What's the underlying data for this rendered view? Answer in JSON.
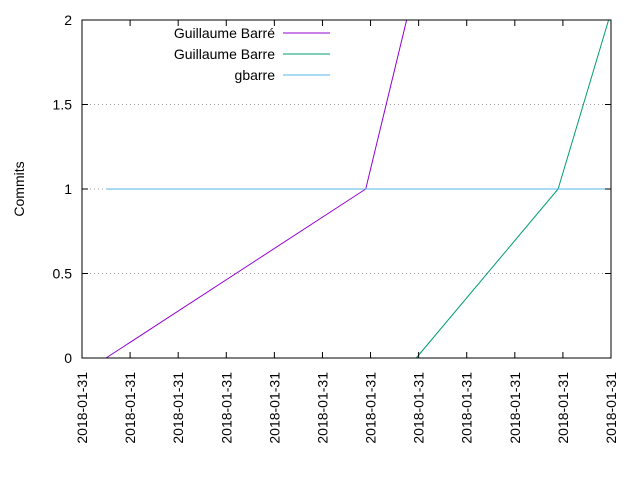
{
  "chart_data": {
    "type": "line",
    "title": "",
    "xlabel": "",
    "ylabel": "Commits",
    "ylim": [
      0,
      2
    ],
    "xlim": [
      0,
      11
    ],
    "yticks": [
      0,
      0.5,
      1,
      1.5,
      2
    ],
    "ytick_labels": [
      "0",
      "0.5",
      "1",
      "1.5",
      "2"
    ],
    "xticks": [
      0,
      1,
      2,
      3,
      4,
      5,
      6,
      7,
      8,
      9,
      10,
      11
    ],
    "xtick_labels": [
      "2018-01-31",
      "2018-01-31",
      "2018-01-31",
      "2018-01-31",
      "2018-01-31",
      "2018-01-31",
      "2018-01-31",
      "2018-01-31",
      "2018-01-31",
      "2018-01-31",
      "2018-01-31",
      "2018-01-31"
    ],
    "grid": "horizontal dotted",
    "legend_position": "top-left",
    "series": [
      {
        "name": "Guillaume Barré",
        "color": "#9400d3",
        "x": [
          0.5,
          5.9,
          6.75
        ],
        "y": [
          0,
          1,
          2
        ]
      },
      {
        "name": "Guillaume Barre",
        "color": "#009e73",
        "x": [
          6.95,
          9.9,
          10.95
        ],
        "y": [
          0,
          1,
          2
        ]
      },
      {
        "name": "gbarre",
        "color": "#56b4e9",
        "x": [
          0.5,
          10.95
        ],
        "y": [
          1,
          1
        ]
      }
    ]
  }
}
